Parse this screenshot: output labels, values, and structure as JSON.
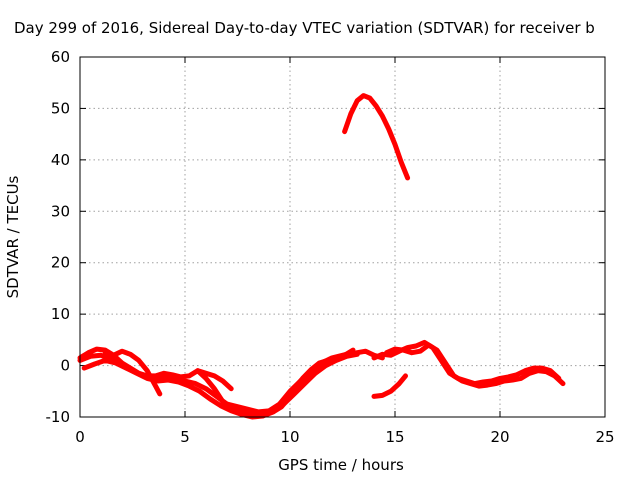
{
  "chart_data": {
    "type": "line",
    "title": "Day 299 of 2016, Sidereal Day-to-day VTEC variation (SDTVAR) for receiver b",
    "xlabel": "GPS time / hours",
    "ylabel": "SDTVAR / TECUs",
    "xlim": [
      0,
      25
    ],
    "ylim": [
      -10,
      60
    ],
    "xticks": [
      0,
      5,
      10,
      15,
      20,
      25
    ],
    "yticks": [
      -10,
      0,
      10,
      20,
      30,
      40,
      50,
      60
    ],
    "grid": true,
    "legend": "none",
    "series_color": "#ff0000",
    "series": [
      {
        "x": [
          0.0,
          0.4,
          0.8,
          1.2,
          1.6,
          2.0,
          2.4,
          2.8,
          3.2,
          3.6,
          4.0,
          4.4,
          4.8,
          5.2,
          5.6,
          6.0,
          6.4,
          6.8,
          7.2,
          7.6,
          8.0,
          8.4,
          8.8,
          9.2,
          9.6,
          10.0,
          10.4,
          10.8,
          11.2,
          11.6,
          12.0,
          12.4,
          12.8,
          13.2,
          13.6,
          14.0,
          14.4
        ],
        "y": [
          1.5,
          2.5,
          3.2,
          3.0,
          2.0,
          0.5,
          -0.5,
          -1.5,
          -2.0,
          -2.0,
          -1.5,
          -1.8,
          -2.2,
          -2.0,
          -1.0,
          -2.5,
          -4.5,
          -7.0,
          -8.0,
          -8.5,
          -9.0,
          -9.3,
          -9.5,
          -9.0,
          -8.0,
          -6.0,
          -4.0,
          -2.0,
          -0.5,
          0.5,
          1.0,
          1.5,
          2.0,
          2.5,
          2.8,
          2.0,
          1.5
        ]
      },
      {
        "x": [
          0.0,
          0.5,
          1.0,
          1.5,
          2.0,
          2.5,
          3.0,
          3.5,
          4.0,
          4.5,
          5.0,
          5.5,
          6.0,
          6.5,
          7.0,
          7.5,
          8.0,
          8.5,
          9.0,
          9.5,
          10.0,
          10.5,
          11.0,
          11.5,
          12.0,
          12.5,
          13.0
        ],
        "y": [
          1.0,
          1.8,
          2.0,
          1.2,
          0.0,
          -1.0,
          -2.0,
          -2.5,
          -2.0,
          -2.5,
          -3.0,
          -3.5,
          -4.5,
          -6.0,
          -7.5,
          -8.0,
          -8.5,
          -9.0,
          -8.8,
          -7.5,
          -5.0,
          -3.0,
          -1.0,
          0.5,
          1.5,
          2.0,
          2.5
        ]
      },
      {
        "x": [
          0.2,
          0.7,
          1.2,
          1.7,
          2.2,
          2.7,
          3.2,
          3.7,
          4.2,
          4.7,
          5.2,
          5.7,
          6.2,
          6.7,
          7.2,
          7.7,
          8.2,
          8.7,
          9.2,
          9.7,
          10.2,
          10.7,
          11.2,
          11.7,
          12.2,
          12.7,
          13.2
        ],
        "y": [
          -0.5,
          0.3,
          1.0,
          0.5,
          -0.5,
          -1.5,
          -2.5,
          -3.0,
          -2.8,
          -3.2,
          -4.0,
          -5.0,
          -6.5,
          -7.8,
          -8.8,
          -9.5,
          -10.0,
          -9.8,
          -9.0,
          -7.5,
          -5.5,
          -3.5,
          -1.5,
          0.0,
          1.0,
          1.8,
          2.2
        ]
      },
      {
        "x": [
          1.2,
          1.6,
          2.0,
          2.4,
          2.8,
          3.2,
          3.4,
          3.6,
          3.8
        ],
        "y": [
          2.5,
          2.0,
          2.8,
          2.2,
          1.0,
          -1.0,
          -2.5,
          -4.0,
          -5.5
        ]
      },
      {
        "x": [
          5.6,
          6.0,
          6.4,
          6.8,
          7.2
        ],
        "y": [
          -1.0,
          -1.5,
          -2.0,
          -3.0,
          -4.5
        ]
      },
      {
        "x": [
          9.4,
          9.8,
          10.2,
          10.6,
          11.0,
          11.4,
          11.8,
          12.2,
          12.6,
          13.0
        ],
        "y": [
          -8.0,
          -6.5,
          -4.5,
          -2.5,
          -0.8,
          0.5,
          1.0,
          1.5,
          2.0,
          3.0
        ]
      },
      {
        "x": [
          12.6,
          12.9,
          13.2,
          13.5,
          13.8,
          14.1,
          14.4,
          14.7,
          15.0,
          15.3,
          15.6
        ],
        "y": [
          45.5,
          49.0,
          51.5,
          52.5,
          52.0,
          50.5,
          48.5,
          46.0,
          43.0,
          39.5,
          36.5
        ]
      },
      {
        "x": [
          14.0,
          14.4,
          14.8,
          15.2,
          15.6,
          16.0,
          16.4,
          16.8,
          17.2,
          17.6,
          18.0,
          18.4,
          18.8,
          19.2,
          19.6,
          20.0,
          20.4,
          20.8,
          21.2,
          21.6,
          22.0,
          22.4,
          22.8
        ],
        "y": [
          1.5,
          2.2,
          2.0,
          2.8,
          3.5,
          3.8,
          4.5,
          3.5,
          1.0,
          -1.5,
          -2.5,
          -3.0,
          -3.5,
          -3.2,
          -3.0,
          -2.5,
          -2.2,
          -1.8,
          -1.0,
          -0.5,
          -0.5,
          -1.0,
          -2.5
        ]
      },
      {
        "x": [
          14.6,
          15.0,
          15.4,
          15.8,
          16.2,
          16.6,
          17.0,
          17.4,
          17.8,
          18.2,
          18.6,
          19.0,
          19.4,
          19.8,
          20.2,
          20.6,
          21.0,
          21.4,
          21.8,
          22.2,
          22.6,
          23.0
        ],
        "y": [
          2.5,
          3.2,
          3.0,
          2.5,
          2.8,
          4.0,
          3.0,
          0.5,
          -2.0,
          -3.0,
          -3.5,
          -4.0,
          -3.8,
          -3.5,
          -3.0,
          -2.8,
          -2.5,
          -1.5,
          -1.0,
          -1.2,
          -2.0,
          -3.5
        ]
      },
      {
        "x": [
          14.0,
          14.4,
          14.8,
          15.2,
          15.5
        ],
        "y": [
          -6.0,
          -5.8,
          -5.0,
          -3.5,
          -2.0
        ]
      }
    ]
  }
}
